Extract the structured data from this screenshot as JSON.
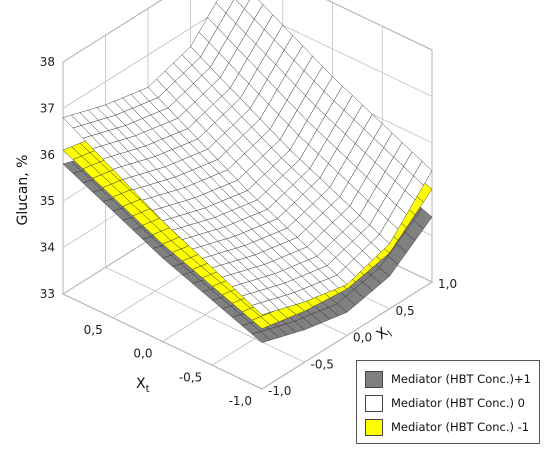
{
  "chart_data": {
    "type": "surface",
    "ylabel": "Glucan, %",
    "x1label_main": "X",
    "x1label_sub": "t",
    "x2label_main": "X",
    "x2label_sub": "l",
    "zlim": [
      33,
      38
    ],
    "z_ticks": [
      "33",
      "34",
      "35",
      "36",
      "37",
      "38"
    ],
    "x1_ticks": [
      "0,5",
      "0,0",
      "-0,5",
      "-1,0"
    ],
    "x2_ticks": [
      "1,0",
      "0,5",
      "0,0",
      "-0,5",
      "-1,0"
    ],
    "grid": true,
    "legend_position": "bottom-right",
    "x1": [
      -1.0,
      -0.5,
      0.0,
      0.5,
      1.0
    ],
    "x2": [
      -1.0,
      -0.5,
      0.0,
      0.5,
      1.0
    ],
    "series": [
      {
        "name": "Mediator (HBT Conc.)+1",
        "color": "#808080",
        "z": [
          [
            34.0,
            33.7,
            33.5,
            33.7,
            34.4
          ],
          [
            34.4,
            34.1,
            33.9,
            34.1,
            34.8
          ],
          [
            34.8,
            34.5,
            34.3,
            34.5,
            35.2
          ],
          [
            35.3,
            35.0,
            34.8,
            35.0,
            35.7
          ],
          [
            35.8,
            35.5,
            35.3,
            35.5,
            36.2
          ]
        ]
      },
      {
        "name": "Mediator (HBT Conc.)  0",
        "color": "#ffffff",
        "z": [
          [
            34.6,
            34.3,
            34.1,
            34.4,
            35.4
          ],
          [
            35.1,
            34.8,
            34.6,
            34.9,
            35.9
          ],
          [
            35.6,
            35.3,
            35.1,
            35.4,
            36.4
          ],
          [
            36.2,
            35.9,
            35.7,
            36.0,
            37.0
          ],
          [
            36.8,
            36.5,
            36.3,
            36.6,
            37.6
          ]
        ]
      },
      {
        "name": "Mediator (HBT Conc.) -1",
        "color": "#ffff00",
        "z": [
          [
            34.3,
            34.1,
            34.0,
            34.2,
            35.0
          ],
          [
            34.7,
            34.5,
            34.4,
            34.6,
            35.4
          ],
          [
            35.1,
            34.9,
            34.8,
            35.0,
            35.8
          ],
          [
            35.6,
            35.4,
            35.3,
            35.5,
            36.3
          ],
          [
            36.1,
            35.9,
            35.8,
            36.0,
            36.8
          ]
        ]
      }
    ]
  }
}
